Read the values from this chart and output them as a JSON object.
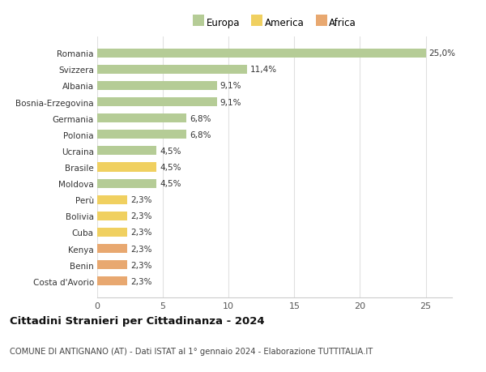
{
  "categories": [
    "Romania",
    "Svizzera",
    "Albania",
    "Bosnia-Erzegovina",
    "Germania",
    "Polonia",
    "Ucraina",
    "Brasile",
    "Moldova",
    "Perù",
    "Bolivia",
    "Cuba",
    "Kenya",
    "Benin",
    "Costa d'Avorio"
  ],
  "values": [
    25.0,
    11.4,
    9.1,
    9.1,
    6.8,
    6.8,
    4.5,
    4.5,
    4.5,
    2.3,
    2.3,
    2.3,
    2.3,
    2.3,
    2.3
  ],
  "continents": [
    "Europa",
    "Europa",
    "Europa",
    "Europa",
    "Europa",
    "Europa",
    "Europa",
    "America",
    "Europa",
    "America",
    "America",
    "America",
    "Africa",
    "Africa",
    "Africa"
  ],
  "colors": {
    "Europa": "#b5cc96",
    "America": "#f0d060",
    "Africa": "#e8a870"
  },
  "labels": [
    "25,0%",
    "11,4%",
    "9,1%",
    "9,1%",
    "6,8%",
    "6,8%",
    "4,5%",
    "4,5%",
    "4,5%",
    "2,3%",
    "2,3%",
    "2,3%",
    "2,3%",
    "2,3%",
    "2,3%"
  ],
  "title": "Cittadini Stranieri per Cittadinanza - 2024",
  "subtitle": "COMUNE DI ANTIGNANO (AT) - Dati ISTAT al 1° gennaio 2024 - Elaborazione TUTTITALIA.IT",
  "xlim": [
    0,
    27
  ],
  "xticks": [
    0,
    5,
    10,
    15,
    20,
    25
  ],
  "legend_labels": [
    "Europa",
    "America",
    "Africa"
  ],
  "background_color": "#ffffff",
  "grid_color": "#e0e0e0"
}
